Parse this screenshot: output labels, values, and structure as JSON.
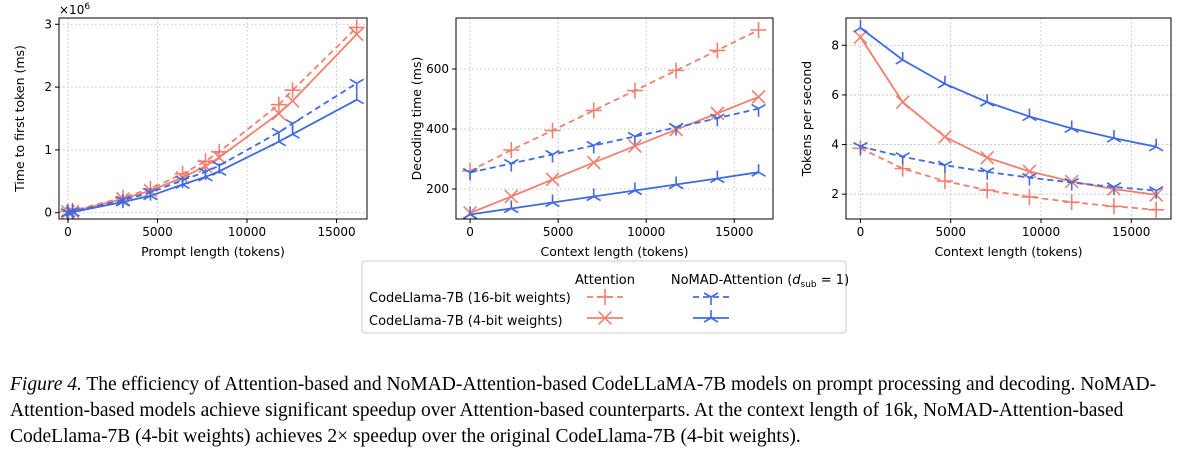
{
  "chart_data": [
    {
      "type": "line",
      "xlabel": "Prompt length (tokens)",
      "ylabel": "Time to first token (ms)",
      "y_multiplier_label": "×10^6",
      "xlim": [
        -500,
        16700
      ],
      "ylim": [
        -0.1,
        3.1
      ],
      "xticks": [
        0,
        5000,
        10000,
        15000
      ],
      "xtick_labels": [
        "0",
        "5000",
        "10000",
        "15000"
      ],
      "yticks": [
        0,
        1,
        2,
        3
      ],
      "ytick_labels": [
        "0",
        "1",
        "2",
        "3"
      ],
      "grid": true,
      "series": [
        {
          "key": "attn16",
          "x": [
            0,
            256,
            3072,
            4608,
            6400,
            7680,
            8448,
            11776,
            12544,
            16128
          ],
          "y": [
            0.02,
            0.03,
            0.24,
            0.38,
            0.62,
            0.82,
            0.97,
            1.72,
            1.95,
            2.95
          ]
        },
        {
          "key": "attn4",
          "x": [
            0,
            256,
            3072,
            4608,
            6400,
            7680,
            8448,
            11776,
            12544,
            16128
          ],
          "y": [
            0.01,
            0.02,
            0.22,
            0.35,
            0.56,
            0.74,
            0.88,
            1.58,
            1.78,
            2.84
          ]
        },
        {
          "key": "nomad16",
          "x": [
            0,
            256,
            3072,
            4608,
            6400,
            7680,
            8448,
            11776,
            12544,
            16128
          ],
          "y": [
            0.0,
            0.02,
            0.2,
            0.32,
            0.52,
            0.65,
            0.75,
            1.28,
            1.42,
            2.06
          ]
        },
        {
          "key": "nomad4",
          "x": [
            0,
            256,
            3072,
            4608,
            6400,
            7680,
            8448,
            11776,
            12544,
            16128
          ],
          "y": [
            0.0,
            0.01,
            0.17,
            0.27,
            0.45,
            0.57,
            0.66,
            1.13,
            1.25,
            1.8
          ]
        }
      ]
    },
    {
      "type": "line",
      "xlabel": "Context length (tokens)",
      "ylabel": "Decoding time (ms)",
      "xlim": [
        -800,
        17200
      ],
      "ylim": [
        100,
        770
      ],
      "xticks": [
        0,
        5000,
        10000,
        15000
      ],
      "xtick_labels": [
        "0",
        "5000",
        "10000",
        "15000"
      ],
      "yticks": [
        200,
        400,
        600
      ],
      "ytick_labels": [
        "200",
        "400",
        "600"
      ],
      "grid": true,
      "series": [
        {
          "key": "attn16",
          "x": [
            0,
            2340,
            4680,
            7020,
            9360,
            11700,
            14040,
            16380
          ],
          "y": [
            260,
            330,
            395,
            462,
            528,
            595,
            662,
            730
          ]
        },
        {
          "key": "attn4",
          "x": [
            0,
            2340,
            4680,
            7020,
            9360,
            11700,
            14040,
            16380
          ],
          "y": [
            120,
            175,
            232,
            288,
            343,
            398,
            452,
            507
          ]
        },
        {
          "key": "nomad16",
          "x": [
            0,
            2340,
            4680,
            7020,
            9360,
            11700,
            14040,
            16380
          ],
          "y": [
            255,
            285,
            315,
            345,
            375,
            405,
            436,
            468
          ]
        },
        {
          "key": "nomad4",
          "x": [
            0,
            2340,
            4680,
            7020,
            9360,
            11700,
            14040,
            16380
          ],
          "y": [
            115,
            135,
            155,
            175,
            195,
            215,
            235,
            256
          ]
        }
      ]
    },
    {
      "type": "line",
      "xlabel": "Context length (tokens)",
      "ylabel": "Tokens per second",
      "xlim": [
        -800,
        17200
      ],
      "ylim": [
        1.0,
        9.1
      ],
      "xticks": [
        0,
        5000,
        10000,
        15000
      ],
      "xtick_labels": [
        "0",
        "5000",
        "10000",
        "15000"
      ],
      "yticks": [
        2,
        4,
        6,
        8
      ],
      "ytick_labels": [
        "2",
        "4",
        "6",
        "8"
      ],
      "grid": true,
      "series": [
        {
          "key": "attn16",
          "x": [
            0,
            2340,
            4680,
            7020,
            9360,
            11700,
            14040,
            16380
          ],
          "y": [
            3.85,
            3.03,
            2.53,
            2.16,
            1.89,
            1.68,
            1.51,
            1.37
          ]
        },
        {
          "key": "attn4",
          "x": [
            0,
            2340,
            4680,
            7020,
            9360,
            11700,
            14040,
            16380
          ],
          "y": [
            8.33,
            5.71,
            4.31,
            3.47,
            2.92,
            2.51,
            2.21,
            1.97
          ]
        },
        {
          "key": "nomad16",
          "x": [
            0,
            2340,
            4680,
            7020,
            9360,
            11700,
            14040,
            16380
          ],
          "y": [
            3.92,
            3.51,
            3.17,
            2.9,
            2.67,
            2.47,
            2.29,
            2.14
          ]
        },
        {
          "key": "nomad4",
          "x": [
            0,
            2340,
            4680,
            7020,
            9360,
            11700,
            14040,
            16380
          ],
          "y": [
            8.7,
            7.41,
            6.45,
            5.71,
            5.13,
            4.65,
            4.26,
            3.91
          ]
        }
      ]
    }
  ],
  "legend": {
    "col_attention": "Attention",
    "col_nomad_prefix": "NoMAD-Attention (",
    "col_nomad_sym": "d",
    "col_nomad_sub": "sub",
    "col_nomad_suffix": " = 1)",
    "row_16bit": "CodeLlama-7B (16-bit weights)",
    "row_4bit": "CodeLlama-7B (4-bit weights)"
  },
  "styles": {
    "attn16": {
      "color": "#f08070",
      "dash": true,
      "marker": "plus"
    },
    "attn4": {
      "color": "#f08070",
      "dash": false,
      "marker": "x"
    },
    "nomad16": {
      "color": "#4169e1",
      "dash": true,
      "marker": "tri_down"
    },
    "nomad4": {
      "color": "#4169e1",
      "dash": false,
      "marker": "tri_up"
    }
  },
  "caption": {
    "label": "Figure 4.",
    "text": " The efficiency of Attention-based and NoMAD-Attention-based CodeLLaMA-7B models on prompt processing and decoding. NoMAD-Attention-based models achieve significant speedup over Attention-based counterparts. At the context length of 16k, NoMAD-Attention-based CodeLlama-7B (4-bit weights) achieves 2× speedup over the original CodeLlama-7B (4-bit weights)."
  }
}
